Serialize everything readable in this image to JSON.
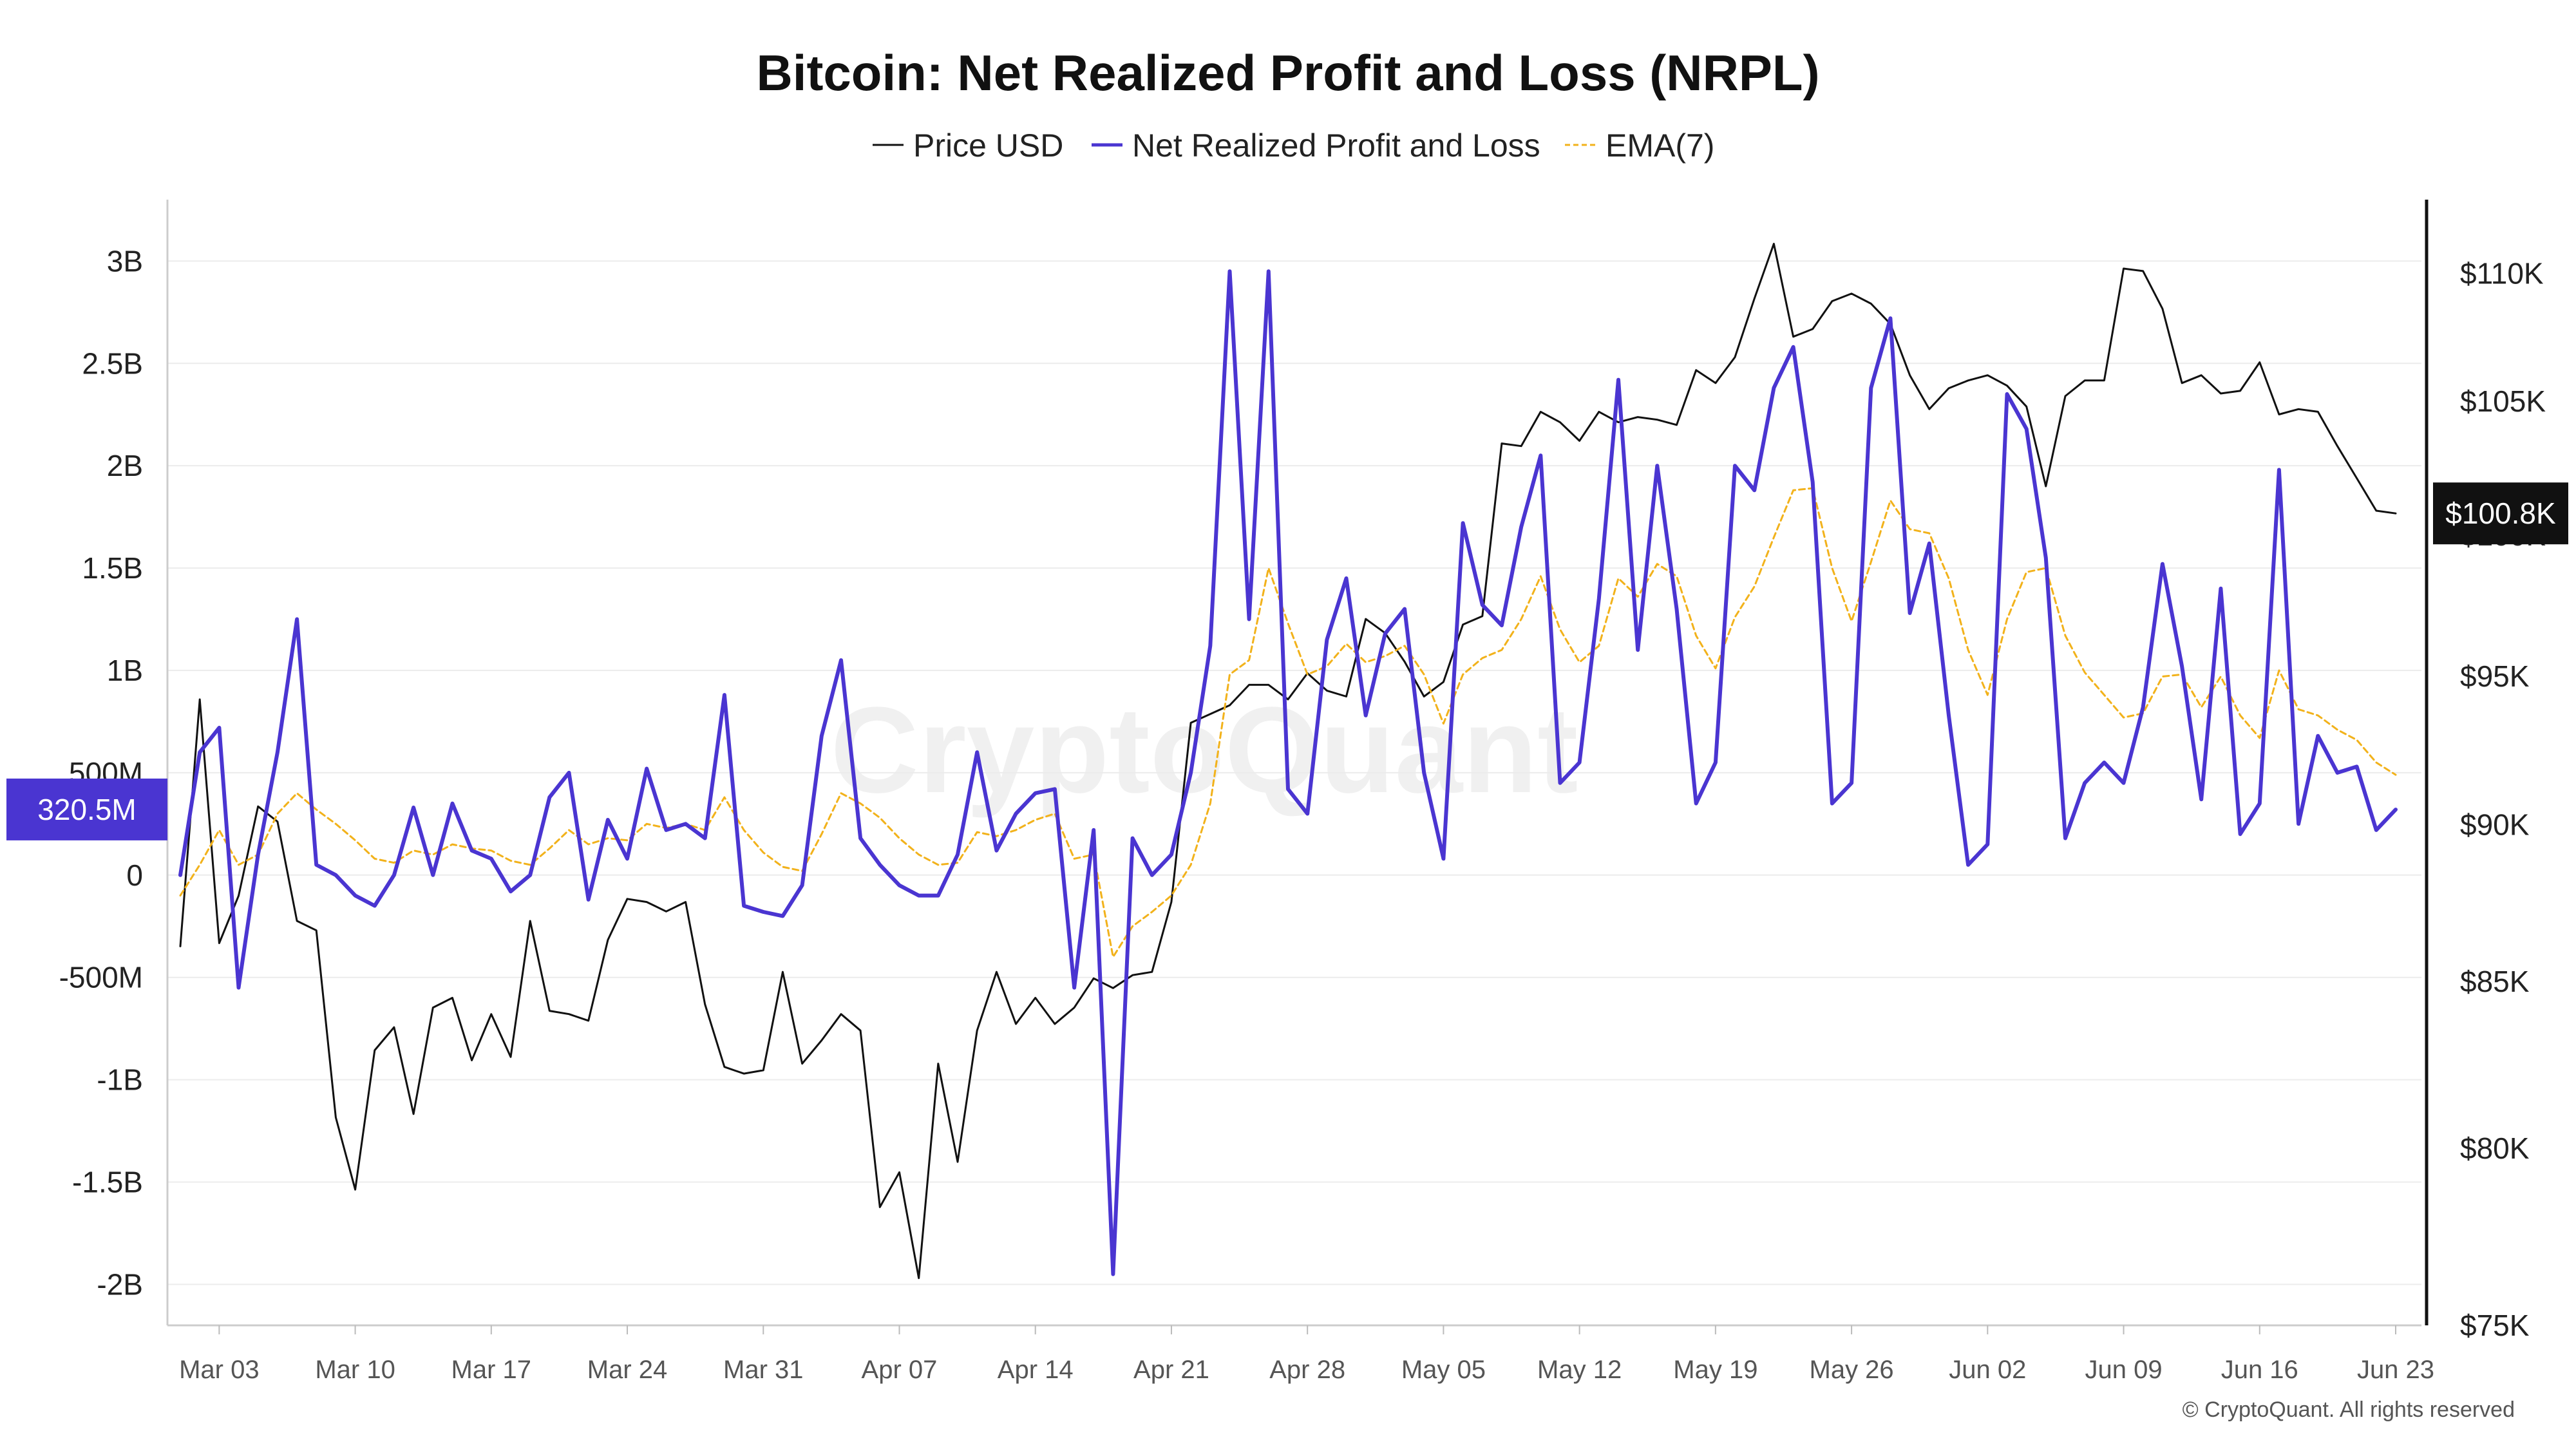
{
  "chart_data": {
    "type": "line",
    "title": "Bitcoin: Net Realized Profit and Loss (NRPL)",
    "watermark": "CryptoQuant",
    "footer": "© CryptoQuant. All rights reserved",
    "legend_position": "top-center",
    "grid": true,
    "colors": {
      "price": "#111111",
      "nrpl": "#4a35d1",
      "ema": "#f2b21b",
      "nrpl_badge": "#4a35d1",
      "price_badge": "#111111"
    },
    "legend": [
      {
        "key": "price",
        "label": "Price USD",
        "style": "solid"
      },
      {
        "key": "nrpl",
        "label": "Net Realized Profit and Loss",
        "style": "solid"
      },
      {
        "key": "ema",
        "label": "EMA(7)",
        "style": "dashed"
      }
    ],
    "x": {
      "start": "2025-03-01",
      "end": "2025-06-23",
      "tick_labels": [
        "Mar 03",
        "Mar 10",
        "Mar 17",
        "Mar 24",
        "Mar 31",
        "Apr 07",
        "Apr 14",
        "Apr 21",
        "Apr 28",
        "May 05",
        "May 12",
        "May 19",
        "May 26",
        "Jun 02",
        "Jun 09",
        "Jun 16",
        "Jun 23"
      ],
      "tick_days": [
        2,
        9,
        16,
        23,
        30,
        37,
        44,
        51,
        58,
        65,
        72,
        79,
        86,
        93,
        100,
        107,
        114
      ]
    },
    "y_left": {
      "min": -2.2,
      "max": 3.3,
      "unit": "B",
      "ticks": [
        3,
        2.5,
        2,
        1.5,
        1,
        0.5,
        0,
        -0.5,
        -1,
        -1.5,
        -2
      ],
      "tick_labels": [
        "3B",
        "2.5B",
        "2B",
        "1.5B",
        "1B",
        "500M",
        "0",
        "-500M",
        "-1B",
        "-1.5B",
        "-2B"
      ]
    },
    "y_right": {
      "min": 75000,
      "max": 113000,
      "scale": "log",
      "ticks": [
        110000,
        105000,
        100000,
        95000,
        90000,
        85000,
        80000,
        75000
      ],
      "tick_labels": [
        "$110K",
        "$105K",
        "$100K",
        "$95K",
        "$90K",
        "$85K",
        "$80K",
        "$75K"
      ]
    },
    "badges": {
      "nrpl_last": {
        "label": "320.5M",
        "value": 0.3205
      },
      "price_last": {
        "label": "$100.8K",
        "value": 100800
      }
    },
    "series": [
      {
        "name": "Price USD",
        "key": "price",
        "axis": "right",
        "start": "2025-03-01",
        "values": [
          86100,
          94200,
          86200,
          87700,
          90600,
          90100,
          86900,
          86600,
          80900,
          78800,
          82900,
          83600,
          81000,
          84200,
          84500,
          82600,
          84000,
          82700,
          86900,
          84100,
          84000,
          83800,
          86300,
          87600,
          87500,
          87200,
          87500,
          84300,
          82400,
          82200,
          82300,
          85300,
          82500,
          83200,
          84000,
          83500,
          78300,
          79300,
          76300,
          82500,
          79600,
          83500,
          85300,
          83700,
          84500,
          83700,
          84200,
          85100,
          84800,
          85200,
          85300,
          87500,
          93400,
          93700,
          94000,
          94700,
          94700,
          94200,
          95100,
          94500,
          94300,
          97000,
          96500,
          95500,
          94300,
          94800,
          96800,
          97100,
          103400,
          103300,
          104600,
          104200,
          103500,
          104600,
          104200,
          104400,
          104300,
          104100,
          106200,
          105700,
          106700,
          109000,
          111200,
          107500,
          107800,
          108900,
          109200,
          108800,
          108000,
          106000,
          104700,
          105500,
          105800,
          106000,
          105600,
          104800,
          101800,
          105200,
          105800,
          105800,
          110200,
          110100,
          108600,
          105700,
          106000,
          105300,
          105400,
          106500,
          104500,
          104700,
          104600,
          103300,
          102100,
          100900,
          100800
        ]
      },
      {
        "name": "Net Realized Profit and Loss",
        "key": "nrpl",
        "axis": "left",
        "start": "2025-03-01",
        "values": [
          0.0,
          0.6,
          0.72,
          -0.55,
          0.1,
          0.6,
          1.25,
          0.05,
          0.0,
          -0.1,
          -0.15,
          0.0,
          0.33,
          0.0,
          0.35,
          0.12,
          0.08,
          -0.08,
          0.0,
          0.38,
          0.5,
          -0.12,
          0.27,
          0.08,
          0.52,
          0.22,
          0.25,
          0.18,
          0.88,
          -0.15,
          -0.18,
          -0.2,
          -0.05,
          0.68,
          1.05,
          0.18,
          0.05,
          -0.05,
          -0.1,
          -0.1,
          0.1,
          0.6,
          0.12,
          0.3,
          0.4,
          0.42,
          -0.55,
          0.22,
          -1.95,
          0.18,
          0.0,
          0.1,
          0.5,
          1.12,
          2.95,
          1.25,
          2.95,
          0.42,
          0.3,
          1.15,
          1.45,
          0.78,
          1.18,
          1.3,
          0.5,
          0.08,
          1.72,
          1.32,
          1.22,
          1.7,
          2.05,
          0.45,
          0.55,
          1.35,
          2.42,
          1.1,
          2.0,
          1.3,
          0.35,
          0.55,
          2.0,
          1.88,
          2.38,
          2.58,
          1.92,
          0.35,
          0.45,
          2.38,
          2.72,
          1.28,
          1.62,
          0.78,
          0.05,
          0.15,
          2.35,
          2.18,
          1.55,
          0.18,
          0.45,
          0.55,
          0.45,
          0.82,
          1.52,
          1.02,
          0.37,
          1.4,
          0.2,
          0.35,
          1.98,
          0.25,
          0.68,
          0.5,
          0.53,
          0.22,
          0.32
        ]
      },
      {
        "name": "EMA(7)",
        "key": "ema",
        "axis": "left",
        "start": "2025-03-01",
        "values": [
          -0.1,
          0.05,
          0.22,
          0.05,
          0.1,
          0.3,
          0.4,
          0.32,
          0.25,
          0.17,
          0.08,
          0.06,
          0.12,
          0.1,
          0.15,
          0.13,
          0.12,
          0.07,
          0.05,
          0.13,
          0.22,
          0.15,
          0.18,
          0.17,
          0.25,
          0.23,
          0.25,
          0.22,
          0.38,
          0.22,
          0.11,
          0.04,
          0.02,
          0.2,
          0.4,
          0.35,
          0.28,
          0.18,
          0.1,
          0.05,
          0.06,
          0.21,
          0.19,
          0.22,
          0.27,
          0.3,
          0.08,
          0.1,
          -0.4,
          -0.25,
          -0.18,
          -0.1,
          0.05,
          0.35,
          0.98,
          1.05,
          1.5,
          1.23,
          0.98,
          1.02,
          1.13,
          1.04,
          1.07,
          1.12,
          0.98,
          0.74,
          0.98,
          1.06,
          1.1,
          1.25,
          1.46,
          1.2,
          1.04,
          1.12,
          1.45,
          1.36,
          1.52,
          1.46,
          1.17,
          1.01,
          1.26,
          1.41,
          1.65,
          1.88,
          1.89,
          1.5,
          1.24,
          1.53,
          1.83,
          1.69,
          1.67,
          1.45,
          1.1,
          0.88,
          1.25,
          1.48,
          1.5,
          1.17,
          0.99,
          0.88,
          0.77,
          0.79,
          0.97,
          0.98,
          0.82,
          0.97,
          0.78,
          0.67,
          1.0,
          0.81,
          0.78,
          0.71,
          0.66,
          0.55,
          0.49
        ]
      }
    ]
  }
}
